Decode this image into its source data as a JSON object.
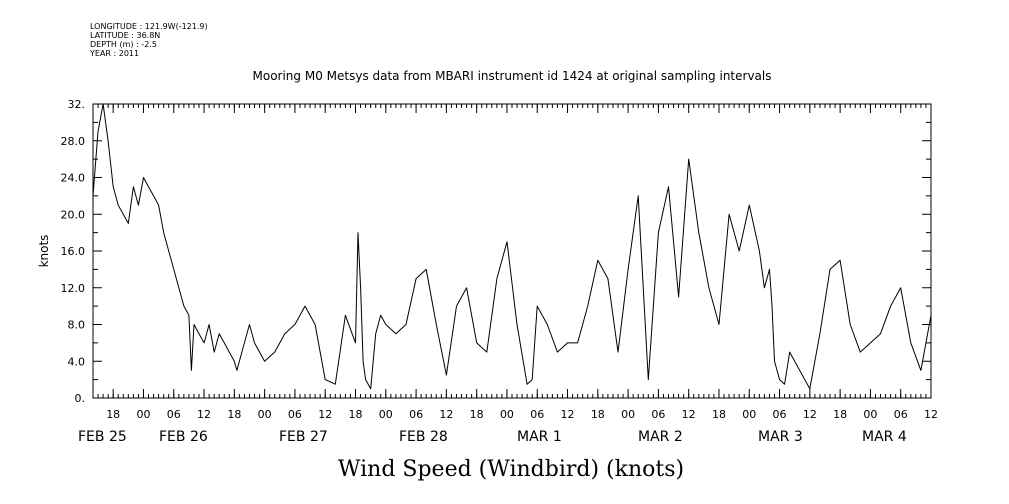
{
  "header": {
    "longitude": "LONGITUDE : 121.9W(-121.9)",
    "latitude": "LATITUDE : 36.8N",
    "depth": "DEPTH (m) : -2.5",
    "year": "YEAR : 2011"
  },
  "chart_data": {
    "type": "line",
    "title": "Mooring M0 Metsys data from MBARI instrument id 1424 at original sampling intervals",
    "ylabel": "knots",
    "xlabel": "Wind Speed (Windbird) (knots)",
    "ylim": [
      0,
      32
    ],
    "yticks": [
      "0.",
      "4.0",
      "8.0",
      "12.0",
      "16.0",
      "20.0",
      "24.0",
      "28.0",
      "32."
    ],
    "xlim_hours": [
      14,
      180
    ],
    "hour_ticks": [
      "18",
      "00",
      "06",
      "12",
      "18",
      "00",
      "06",
      "12",
      "18",
      "00",
      "06",
      "12",
      "18",
      "00",
      "06",
      "12",
      "18",
      "00",
      "06",
      "12",
      "18",
      "00",
      "06",
      "12",
      "18",
      "00",
      "06",
      "12"
    ],
    "date_labels": [
      "FEB 25",
      "FEB 26",
      "FEB 27",
      "FEB 28",
      "MAR  1",
      "MAR  2",
      "MAR  3",
      "MAR  4"
    ],
    "grid": false,
    "series": [
      {
        "x": [
          14,
          15,
          16,
          17,
          18,
          19,
          20,
          21,
          22,
          23,
          24,
          25,
          26,
          27,
          28,
          29,
          30,
          31,
          32,
          33,
          33.5,
          34,
          35,
          36,
          37,
          38,
          39,
          40,
          41,
          42,
          42.5,
          43,
          44,
          45,
          46,
          48,
          50,
          52,
          54,
          56,
          58,
          60,
          62,
          64,
          66,
          66.5,
          67,
          67.5,
          68,
          69,
          70,
          71,
          72,
          74,
          76,
          78,
          80,
          82,
          84,
          86,
          88,
          90,
          92,
          94,
          96,
          98,
          100,
          101,
          102,
          104,
          106,
          108,
          110,
          112,
          114,
          116,
          118,
          120,
          122,
          124,
          126,
          128,
          130,
          132,
          134,
          136,
          138,
          140,
          142,
          144,
          146,
          147,
          148,
          148.5,
          149,
          150,
          151,
          152,
          154,
          156,
          158,
          160,
          162,
          164,
          166,
          168,
          170,
          172,
          174,
          176,
          178,
          180
        ],
        "y": [
          22,
          29,
          32,
          28,
          23,
          21,
          20,
          19,
          23,
          21,
          24,
          23,
          22,
          21,
          18,
          16,
          14,
          12,
          10,
          9,
          3,
          8,
          7,
          6,
          8,
          5,
          7,
          6,
          5,
          4,
          3,
          4,
          6,
          8,
          6,
          4,
          5,
          7,
          8,
          10,
          8,
          2,
          1.5,
          9,
          6,
          18,
          12,
          4,
          2,
          1,
          7,
          9,
          8,
          7,
          8,
          13,
          14,
          8,
          2.5,
          10,
          12,
          6,
          5,
          13,
          17,
          8,
          1.5,
          2,
          10,
          8,
          5,
          6,
          6,
          10,
          15,
          13,
          5,
          14,
          22,
          2,
          18,
          23,
          11,
          26,
          18,
          12,
          8,
          20,
          16,
          21,
          16,
          12,
          14,
          10,
          4,
          2,
          1.5,
          5,
          3,
          1,
          7,
          14,
          15,
          8,
          5,
          6,
          7,
          10,
          12,
          6,
          3,
          9
        ]
      }
    ]
  }
}
